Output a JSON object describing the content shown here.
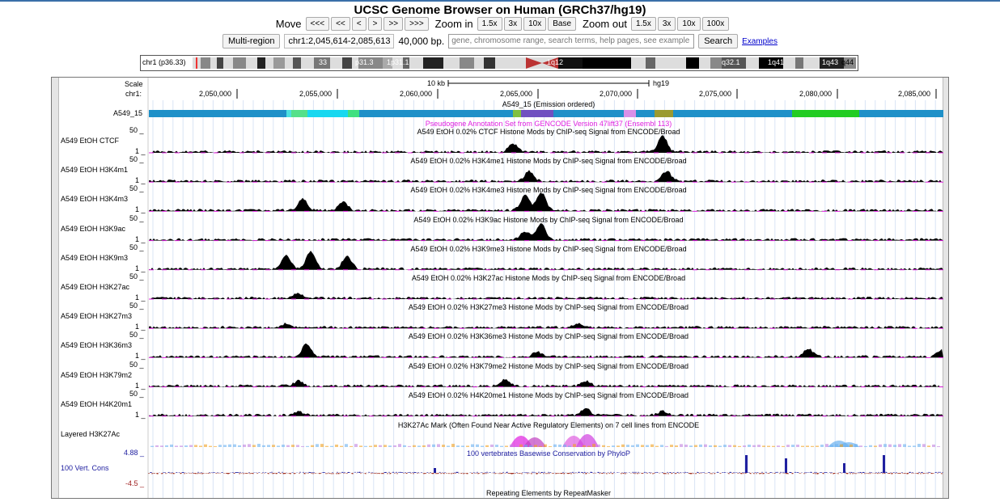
{
  "header": {
    "title": "UCSC Genome Browser on Human (GRCh37/hg19)"
  },
  "nav": {
    "move_label": "Move",
    "move_buttons": [
      "<<<",
      "<<",
      "<",
      ">",
      ">>",
      ">>>"
    ],
    "zoom_in_label": "Zoom in",
    "zoom_in_buttons": [
      "1.5x",
      "3x",
      "10x",
      "Base"
    ],
    "zoom_out_label": "Zoom out",
    "zoom_out_buttons": [
      "1.5x",
      "3x",
      "10x",
      "100x"
    ]
  },
  "toolbar": {
    "multi_region": "Multi-region",
    "position": "chr1:2,045,614-2,085,613",
    "size": "40,000 bp.",
    "search_placeholder": "gene, chromosome range, search terms, help pages, see example",
    "search_button": "Search",
    "examples_link": "Examples"
  },
  "ideogram": {
    "label": "chr1 (p36.33)",
    "bands": [
      "33",
      "p31.3",
      "1p31.1",
      "1q12",
      "q32.1",
      "1q41",
      "1q43",
      "q44"
    ]
  },
  "ruler": {
    "scale_label": "Scale",
    "chr_label": "chr1:",
    "scale_text": "10 kb",
    "assembly": "hg19",
    "ticks": [
      "2,050,000",
      "2,055,000",
      "2,060,000",
      "2,065,000",
      "2,070,000",
      "2,075,000",
      "2,080,000",
      "2,085,000"
    ]
  },
  "tracks": {
    "chromhmm": {
      "label": "A549_15",
      "title": "A549_15 (Emission ordered)"
    },
    "gencode": {
      "title": "Pseudogene Annotation Set from GENCODE Version 47lift37 (Ensembl 113)"
    },
    "signal": [
      {
        "label": "A549 EtOH CTCF",
        "title": "A549 EtOH 0.02% CTCF Histone Mods by ChIP-seq Signal from ENCODE/Broad",
        "max": "50 _",
        "min": "1 _"
      },
      {
        "label": "A549 EtOH H3K4m1",
        "title": "A549 EtOH 0.02% H3K4me1 Histone Mods by ChIP-seq Signal from ENCODE/Broad",
        "max": "50 _",
        "min": "1 _"
      },
      {
        "label": "A549 EtOH H3K4m3",
        "title": "A549 EtOH 0.02% H3K4me3 Histone Mods by ChIP-seq Signal from ENCODE/Broad",
        "max": "50 _",
        "min": "1 _"
      },
      {
        "label": "A549 EtOH H3K9ac",
        "title": "A549 EtOH 0.02% H3K9ac Histone Mods by ChIP-seq Signal from ENCODE/Broad",
        "max": "50 _",
        "min": "1 _"
      },
      {
        "label": "A549 EtOH H3K9m3",
        "title": "A549 EtOH 0.02% H3K9me3 Histone Mods by ChIP-seq Signal from ENCODE/Broad",
        "max": "50 _",
        "min": "1 _"
      },
      {
        "label": "A549 EtOH H3K27ac",
        "title": "A549 EtOH 0.02% H3K27ac Histone Mods by ChIP-seq Signal from ENCODE/Broad",
        "max": "50 _",
        "min": "1 _"
      },
      {
        "label": "A549 EtOH H3K27m3",
        "title": "A549 EtOH 0.02% H3K27me3 Histone Mods by ChIP-seq Signal from ENCODE/Broad",
        "max": "50 _",
        "min": "1 _"
      },
      {
        "label": "A549 EtOH H3K36m3",
        "title": "A549 EtOH 0.02% H3K36me3 Histone Mods by ChIP-seq Signal from ENCODE/Broad",
        "max": "50 _",
        "min": "1 _"
      },
      {
        "label": "A549 EtOH H3K79m2",
        "title": "A549 EtOH 0.02% H3K79me2 Histone Mods by ChIP-seq Signal from ENCODE/Broad",
        "max": "50 _",
        "min": "1 _"
      },
      {
        "label": "A549 EtOH H4K20m1",
        "title": "A549 EtOH 0.02% H4K20me1 Histone Mods by ChIP-seq Signal from ENCODE/Broad",
        "max": "50 _",
        "min": "1 _"
      }
    ],
    "layered": {
      "label": "Layered H3K27Ac",
      "title": "H3K27Ac Mark (Often Found Near Active Regulatory Elements) on 7 cell lines from ENCODE"
    },
    "cons": {
      "label": "100 Vert. Cons",
      "title": "100 vertebrates Basewise Conservation by PhyloP",
      "max": "4.88 _",
      "min": "-4.5 _"
    },
    "rmsk": {
      "title": "Repeating Elements by RepeatMasker"
    }
  },
  "colors": {
    "link": "#0000cc",
    "gencode": "#e020e0",
    "cons": "#2020a0"
  }
}
